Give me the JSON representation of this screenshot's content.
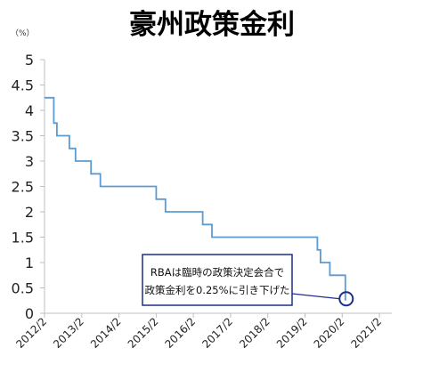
{
  "chart_data": {
    "type": "line",
    "title": "豪州政策金利",
    "unit": "（%）",
    "ylim": [
      0,
      5
    ],
    "yticks": [
      "5",
      "4.5",
      "4",
      "3.5",
      "3",
      "2.5",
      "2",
      "1.5",
      "1",
      "0.5",
      "0"
    ],
    "xticks": [
      "2012/2",
      "2013/2",
      "2014/2",
      "2015/2",
      "2016/2",
      "2017/2",
      "2018/2",
      "2019/2",
      "2020/2",
      "2021/2"
    ],
    "xlim": [
      "2012-02",
      "2021-06"
    ],
    "grid": false,
    "series": [
      {
        "color": "#5b9bd5",
        "points": [
          [
            "2012-02",
            4.25
          ],
          [
            "2012-05",
            4.25
          ],
          [
            "2012-05",
            3.75
          ],
          [
            "2012-06",
            3.75
          ],
          [
            "2012-06",
            3.5
          ],
          [
            "2012-10",
            3.5
          ],
          [
            "2012-10",
            3.25
          ],
          [
            "2012-12",
            3.25
          ],
          [
            "2012-12",
            3.0
          ],
          [
            "2013-05",
            3.0
          ],
          [
            "2013-05",
            2.75
          ],
          [
            "2013-08",
            2.75
          ],
          [
            "2013-08",
            2.5
          ],
          [
            "2015-02",
            2.5
          ],
          [
            "2015-02",
            2.25
          ],
          [
            "2015-05",
            2.25
          ],
          [
            "2015-05",
            2.0
          ],
          [
            "2016-05",
            2.0
          ],
          [
            "2016-05",
            1.75
          ],
          [
            "2016-08",
            1.75
          ],
          [
            "2016-08",
            1.5
          ],
          [
            "2019-06",
            1.5
          ],
          [
            "2019-06",
            1.25
          ],
          [
            "2019-07",
            1.25
          ],
          [
            "2019-07",
            1.0
          ],
          [
            "2019-10",
            1.0
          ],
          [
            "2019-10",
            0.75
          ],
          [
            "2020-03",
            0.75
          ],
          [
            "2020-03",
            0.25
          ]
        ]
      }
    ],
    "annotation": {
      "lines": [
        "RBAは臨時の政策決定会合で",
        "政策金利を0.25%に引き下げた"
      ],
      "target": [
        "2020-03",
        0.25
      ],
      "box_color": "#1f2f8a"
    }
  }
}
